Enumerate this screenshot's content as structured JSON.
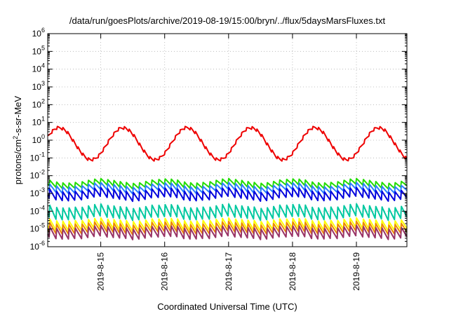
{
  "chart_data": {
    "type": "line",
    "title": "/data/run/goesPlots/archive/2019-08-19/15:00/bryn/../flux/5daysMarsFluxes.txt",
    "xlabel": "Coordinated Universal Time (UTC)",
    "ylabel": {
      "base": "protons/cm",
      "sup": "2",
      "rest": "-s-sr-MeV"
    },
    "y_scale": "log",
    "ylim": [
      1e-06,
      1000000.0
    ],
    "xlim": [
      "2019-08-14 04:00",
      "2019-08-19 19:00"
    ],
    "x_ticks": [
      "2019-8-15",
      "2019-8-16",
      "2019-8-17",
      "2019-8-18",
      "2019-8-19"
    ],
    "x_tick_days": [
      1,
      2,
      3,
      4,
      5
    ],
    "x_range_days": [
      0.17,
      5.79
    ],
    "y_tick_labels": [
      {
        "base": "10",
        "exp": "-6"
      },
      {
        "base": "10",
        "exp": "-5"
      },
      {
        "base": "10",
        "exp": "-4"
      },
      {
        "base": "10",
        "exp": "-3"
      },
      {
        "base": "10",
        "exp": "-2"
      },
      {
        "base": "10",
        "exp": "-1"
      },
      {
        "base": "10",
        "exp": "0"
      },
      {
        "base": "10",
        "exp": "1"
      },
      {
        "base": "10",
        "exp": "2"
      },
      {
        "base": "10",
        "exp": "3"
      },
      {
        "base": "10",
        "exp": "4"
      },
      {
        "base": "10",
        "exp": "5"
      },
      {
        "base": "10",
        "exp": "6"
      }
    ],
    "grid": "dotted",
    "legend": "none",
    "series": [
      {
        "color": "#ee0000",
        "base": -0.2,
        "amp": 0.9,
        "period": 1.0,
        "phase": 0.35,
        "saw_amp": 0.18,
        "saw_period": 0.08
      },
      {
        "color": "#22dd00",
        "base": -2.45,
        "amp": 0.12,
        "period": 1.0,
        "phase": 0.0,
        "saw_amp": 0.35,
        "saw_period": 0.1
      },
      {
        "color": "#2a7fff",
        "base": -2.7,
        "amp": 0.12,
        "period": 1.0,
        "phase": 0.0,
        "saw_amp": 0.4,
        "saw_period": 0.1
      },
      {
        "color": "#0000dd",
        "base": -3.05,
        "amp": 0.12,
        "period": 1.0,
        "phase": 0.0,
        "saw_amp": 0.55,
        "saw_period": 0.1
      },
      {
        "color": "#00c8a0",
        "base": -4.05,
        "amp": 0.1,
        "period": 1.0,
        "phase": 0.0,
        "saw_amp": 0.75,
        "saw_period": 0.1
      },
      {
        "color": "#ffff00",
        "base": -4.75,
        "amp": 0.08,
        "period": 1.0,
        "phase": 0.0,
        "saw_amp": 0.6,
        "saw_period": 0.1
      },
      {
        "color": "#ee8800",
        "base": -4.95,
        "amp": 0.08,
        "period": 1.0,
        "phase": 0.0,
        "saw_amp": 0.6,
        "saw_period": 0.1
      },
      {
        "color": "#993366",
        "base": -5.2,
        "amp": 0.08,
        "period": 1.0,
        "phase": 0.0,
        "saw_amp": 0.65,
        "saw_period": 0.1
      }
    ]
  }
}
